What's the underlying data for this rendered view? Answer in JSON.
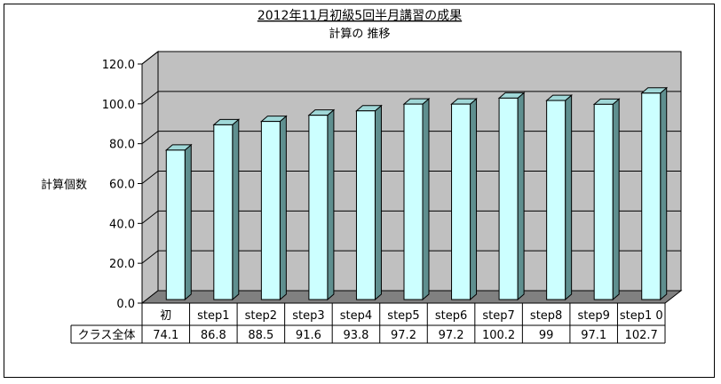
{
  "chart_data": {
    "type": "bar",
    "title": "2012年11月初級5回半月講習の成果",
    "subtitle": "計算の 推移",
    "ylabel": "計算個数",
    "xlabel": "",
    "ylim": [
      0,
      120
    ],
    "yticks": [
      "0.0",
      "20.0",
      "40.0",
      "60.0",
      "80.0",
      "100.0",
      "120.0"
    ],
    "grid": true,
    "legend": "none",
    "categories": [
      "初",
      "step1",
      "step2",
      "step3",
      "step4",
      "step5",
      "step6",
      "step7",
      "step8",
      "step9",
      "step1 0"
    ],
    "series": [
      {
        "name": "クラス全体",
        "values": [
          74.1,
          86.8,
          88.5,
          91.6,
          93.8,
          97.2,
          97.2,
          100.2,
          99,
          97.1,
          102.7
        ],
        "labels": [
          "74.1",
          "86.8",
          "88.5",
          "91.6",
          "93.8",
          "97.2",
          "97.2",
          "100.2",
          "99",
          "97.1",
          "102.7"
        ]
      }
    ],
    "colors": {
      "bar_front": "#ccffff",
      "bar_side": "#5f8f8f",
      "bar_top": "#a0d8d8",
      "wall": "#c0c0c0",
      "floor": "#808080",
      "gridline": "#000000"
    }
  }
}
